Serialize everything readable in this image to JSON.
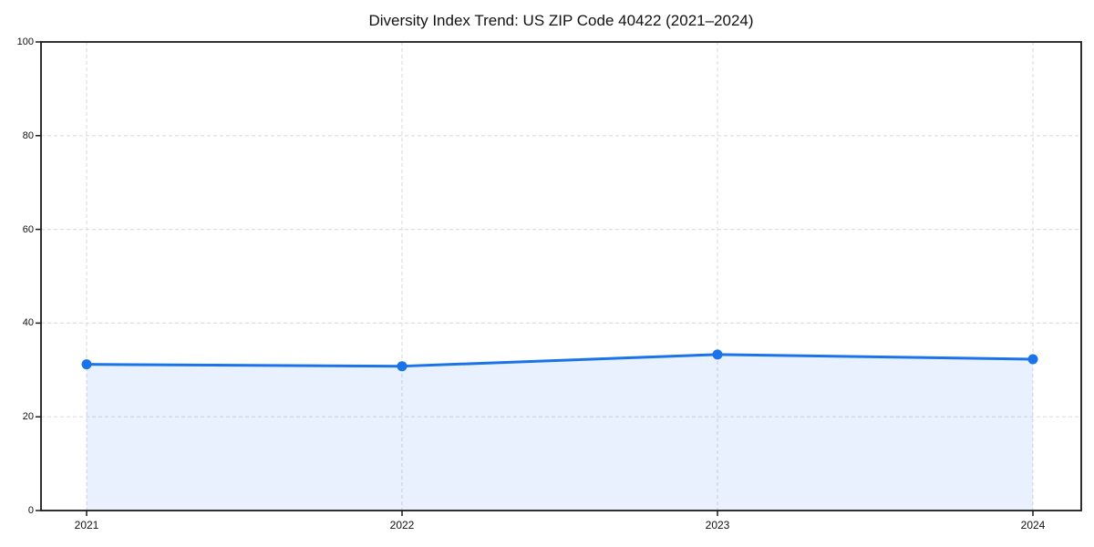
{
  "chart_data": {
    "type": "area",
    "title": "Diversity Index Trend: US ZIP Code 40422 (2021–2024)",
    "categories": [
      "2021",
      "2022",
      "2023",
      "2024"
    ],
    "series": [
      {
        "name": "Diversity Index",
        "values": [
          31.2,
          30.8,
          33.3,
          32.3
        ]
      }
    ],
    "xlabel": "",
    "ylabel": "",
    "ylim": [
      0,
      100
    ],
    "yticks": [
      0,
      20,
      40,
      60,
      80,
      100
    ],
    "grid": true,
    "grid_style": "dashed",
    "legend": "none",
    "colors": {
      "line": "#1a73e8",
      "marker": "#1a73e8",
      "fill": "rgba(26,115,232,0.10)",
      "gridline": "#dedede",
      "spine": "#1a1a1a",
      "background": "#ffffff",
      "text": "#111111"
    }
  }
}
